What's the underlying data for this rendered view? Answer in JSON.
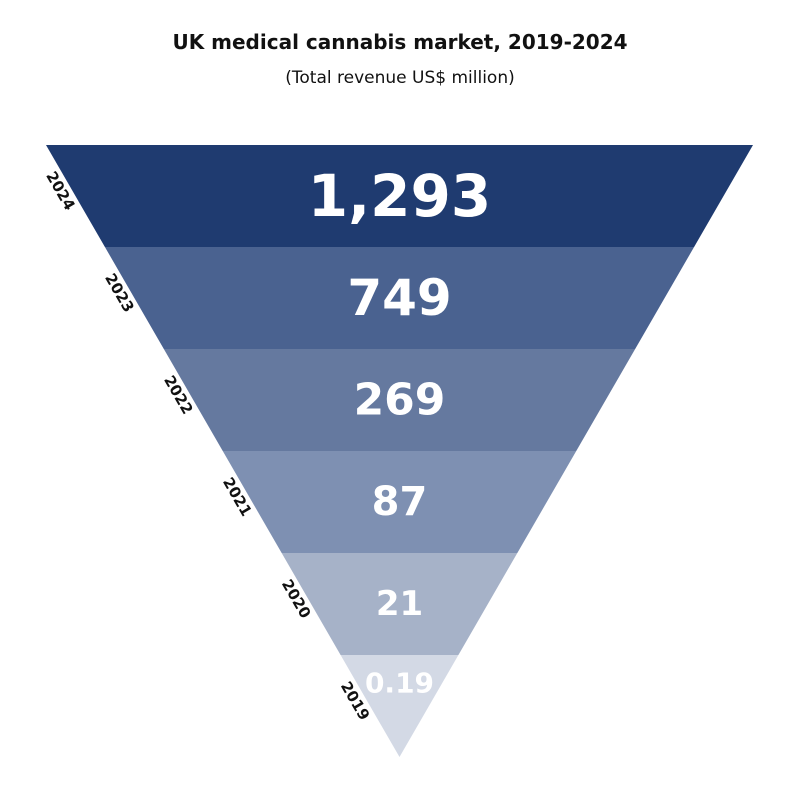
{
  "chart_data": {
    "type": "funnel",
    "title": "UK medical cannabis market, 2019-2024",
    "subtitle": "(Total revenue US$ million)",
    "categories": [
      "2024",
      "2023",
      "2022",
      "2021",
      "2020",
      "2019"
    ],
    "values": [
      1293,
      749,
      269,
      87,
      21,
      0.19
    ],
    "value_labels": [
      "1,293",
      "749",
      "269",
      "87",
      "21",
      "0.19"
    ],
    "colors": [
      "#1f3b70",
      "#4a6290",
      "#65799f",
      "#7e90b2",
      "#a6b2c8",
      "#d3d9e5"
    ]
  }
}
